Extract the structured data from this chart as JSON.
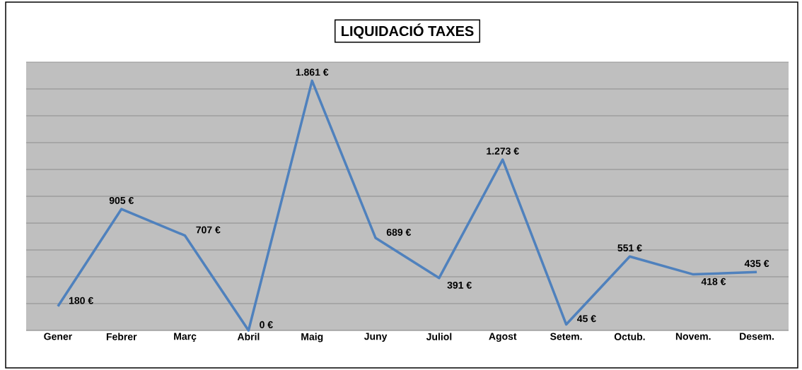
{
  "chart_data": {
    "type": "line",
    "title": "LIQUIDACIÓ TAXES",
    "categories": [
      "Gener",
      "Febrer",
      "Març",
      "Abril",
      "Maig",
      "Juny",
      "Juliol",
      "Agost",
      "Setem.",
      "Octub.",
      "Novem.",
      "Desem."
    ],
    "values": [
      180,
      905,
      707,
      0,
      1861,
      689,
      391,
      1273,
      45,
      551,
      418,
      435
    ],
    "value_labels": [
      "180 €",
      "905 €",
      "707 €",
      "0 €",
      "1.861 €",
      "689 €",
      "391 €",
      "1.273 €",
      "45 €",
      "551 €",
      "418 €",
      "435 €"
    ],
    "color": "#4f81bd",
    "ylim": [
      0,
      2000
    ],
    "yticks": [
      {
        "value": 0,
        "label": null
      },
      {
        "value": 200,
        "label": null
      },
      {
        "value": 400,
        "label": null
      },
      {
        "value": 600,
        "label": null
      },
      {
        "value": 800,
        "label": null
      },
      {
        "value": 1000,
        "label": null
      },
      {
        "value": 1200,
        "label": null
      },
      {
        "value": 1400,
        "label": null
      },
      {
        "value": 1600,
        "label": null
      },
      {
        "value": 1800,
        "label": null
      },
      {
        "value": 2000,
        "label": null
      }
    ],
    "grid": "y",
    "tick_labels": "x",
    "marker": "none",
    "line_style": "solid"
  }
}
